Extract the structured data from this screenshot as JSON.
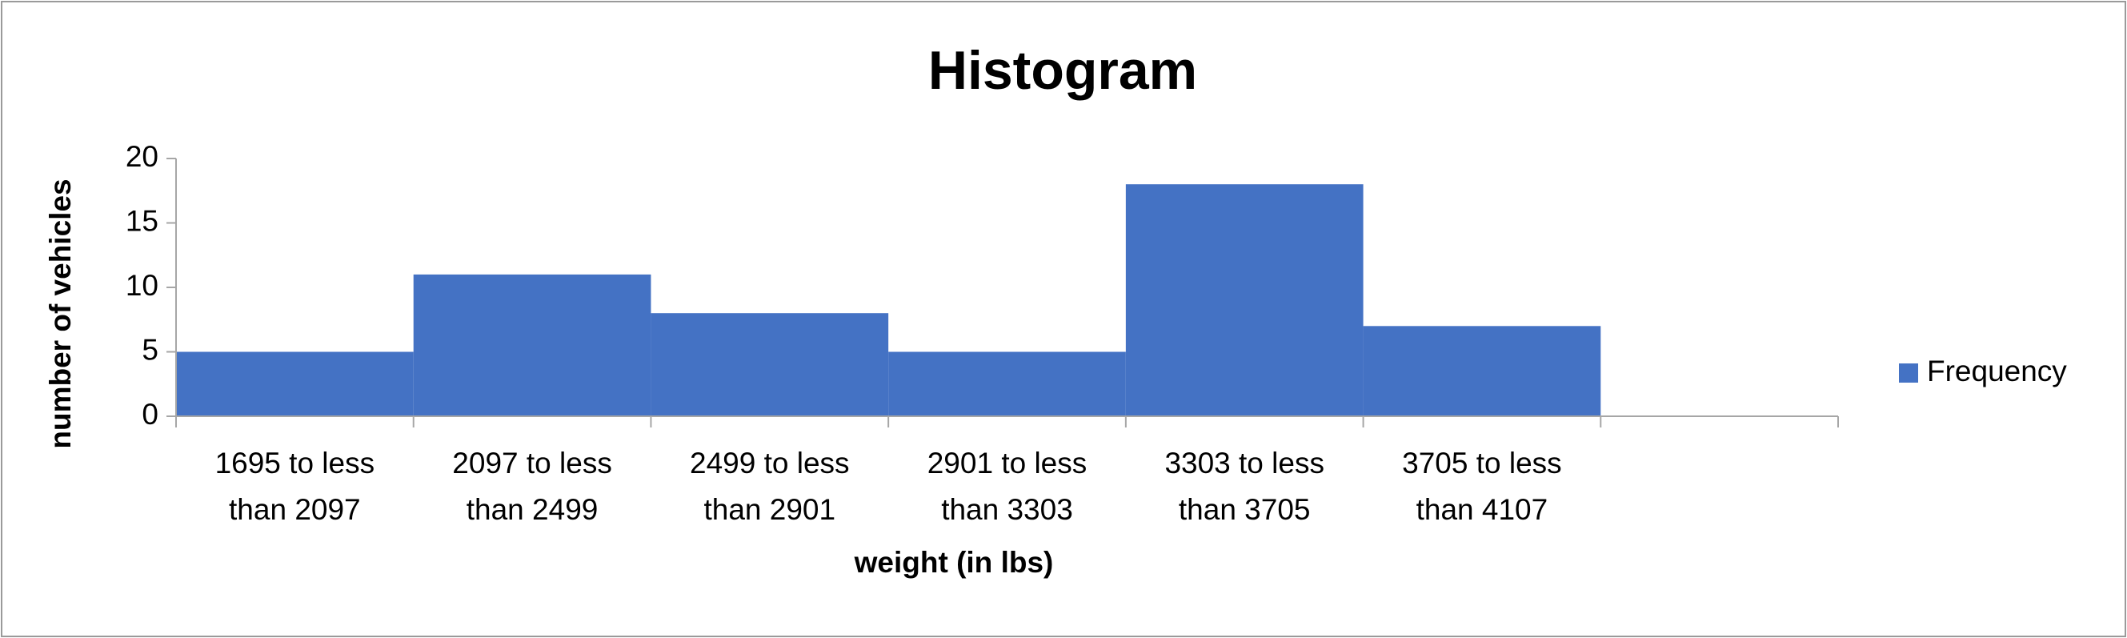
{
  "chart_data": {
    "type": "bar",
    "title": "Histogram",
    "x_label": "weight (in lbs)",
    "y_label": "number of vehicles",
    "categories": [
      "1695 to less than 2097",
      "2097 to less than 2499",
      "2499 to less than 2901",
      "2901 to less than 3303",
      "3303 to less than 3705",
      "3705 to less than 4107",
      null
    ],
    "series": [
      {
        "name": "Frequency",
        "color": "#4472c4",
        "values": [
          5,
          11,
          8,
          5,
          18,
          7,
          null
        ]
      }
    ],
    "ylim": [
      0,
      20
    ],
    "yticks": [
      0,
      5,
      10,
      15,
      20
    ],
    "grid": false,
    "legend": "right"
  }
}
